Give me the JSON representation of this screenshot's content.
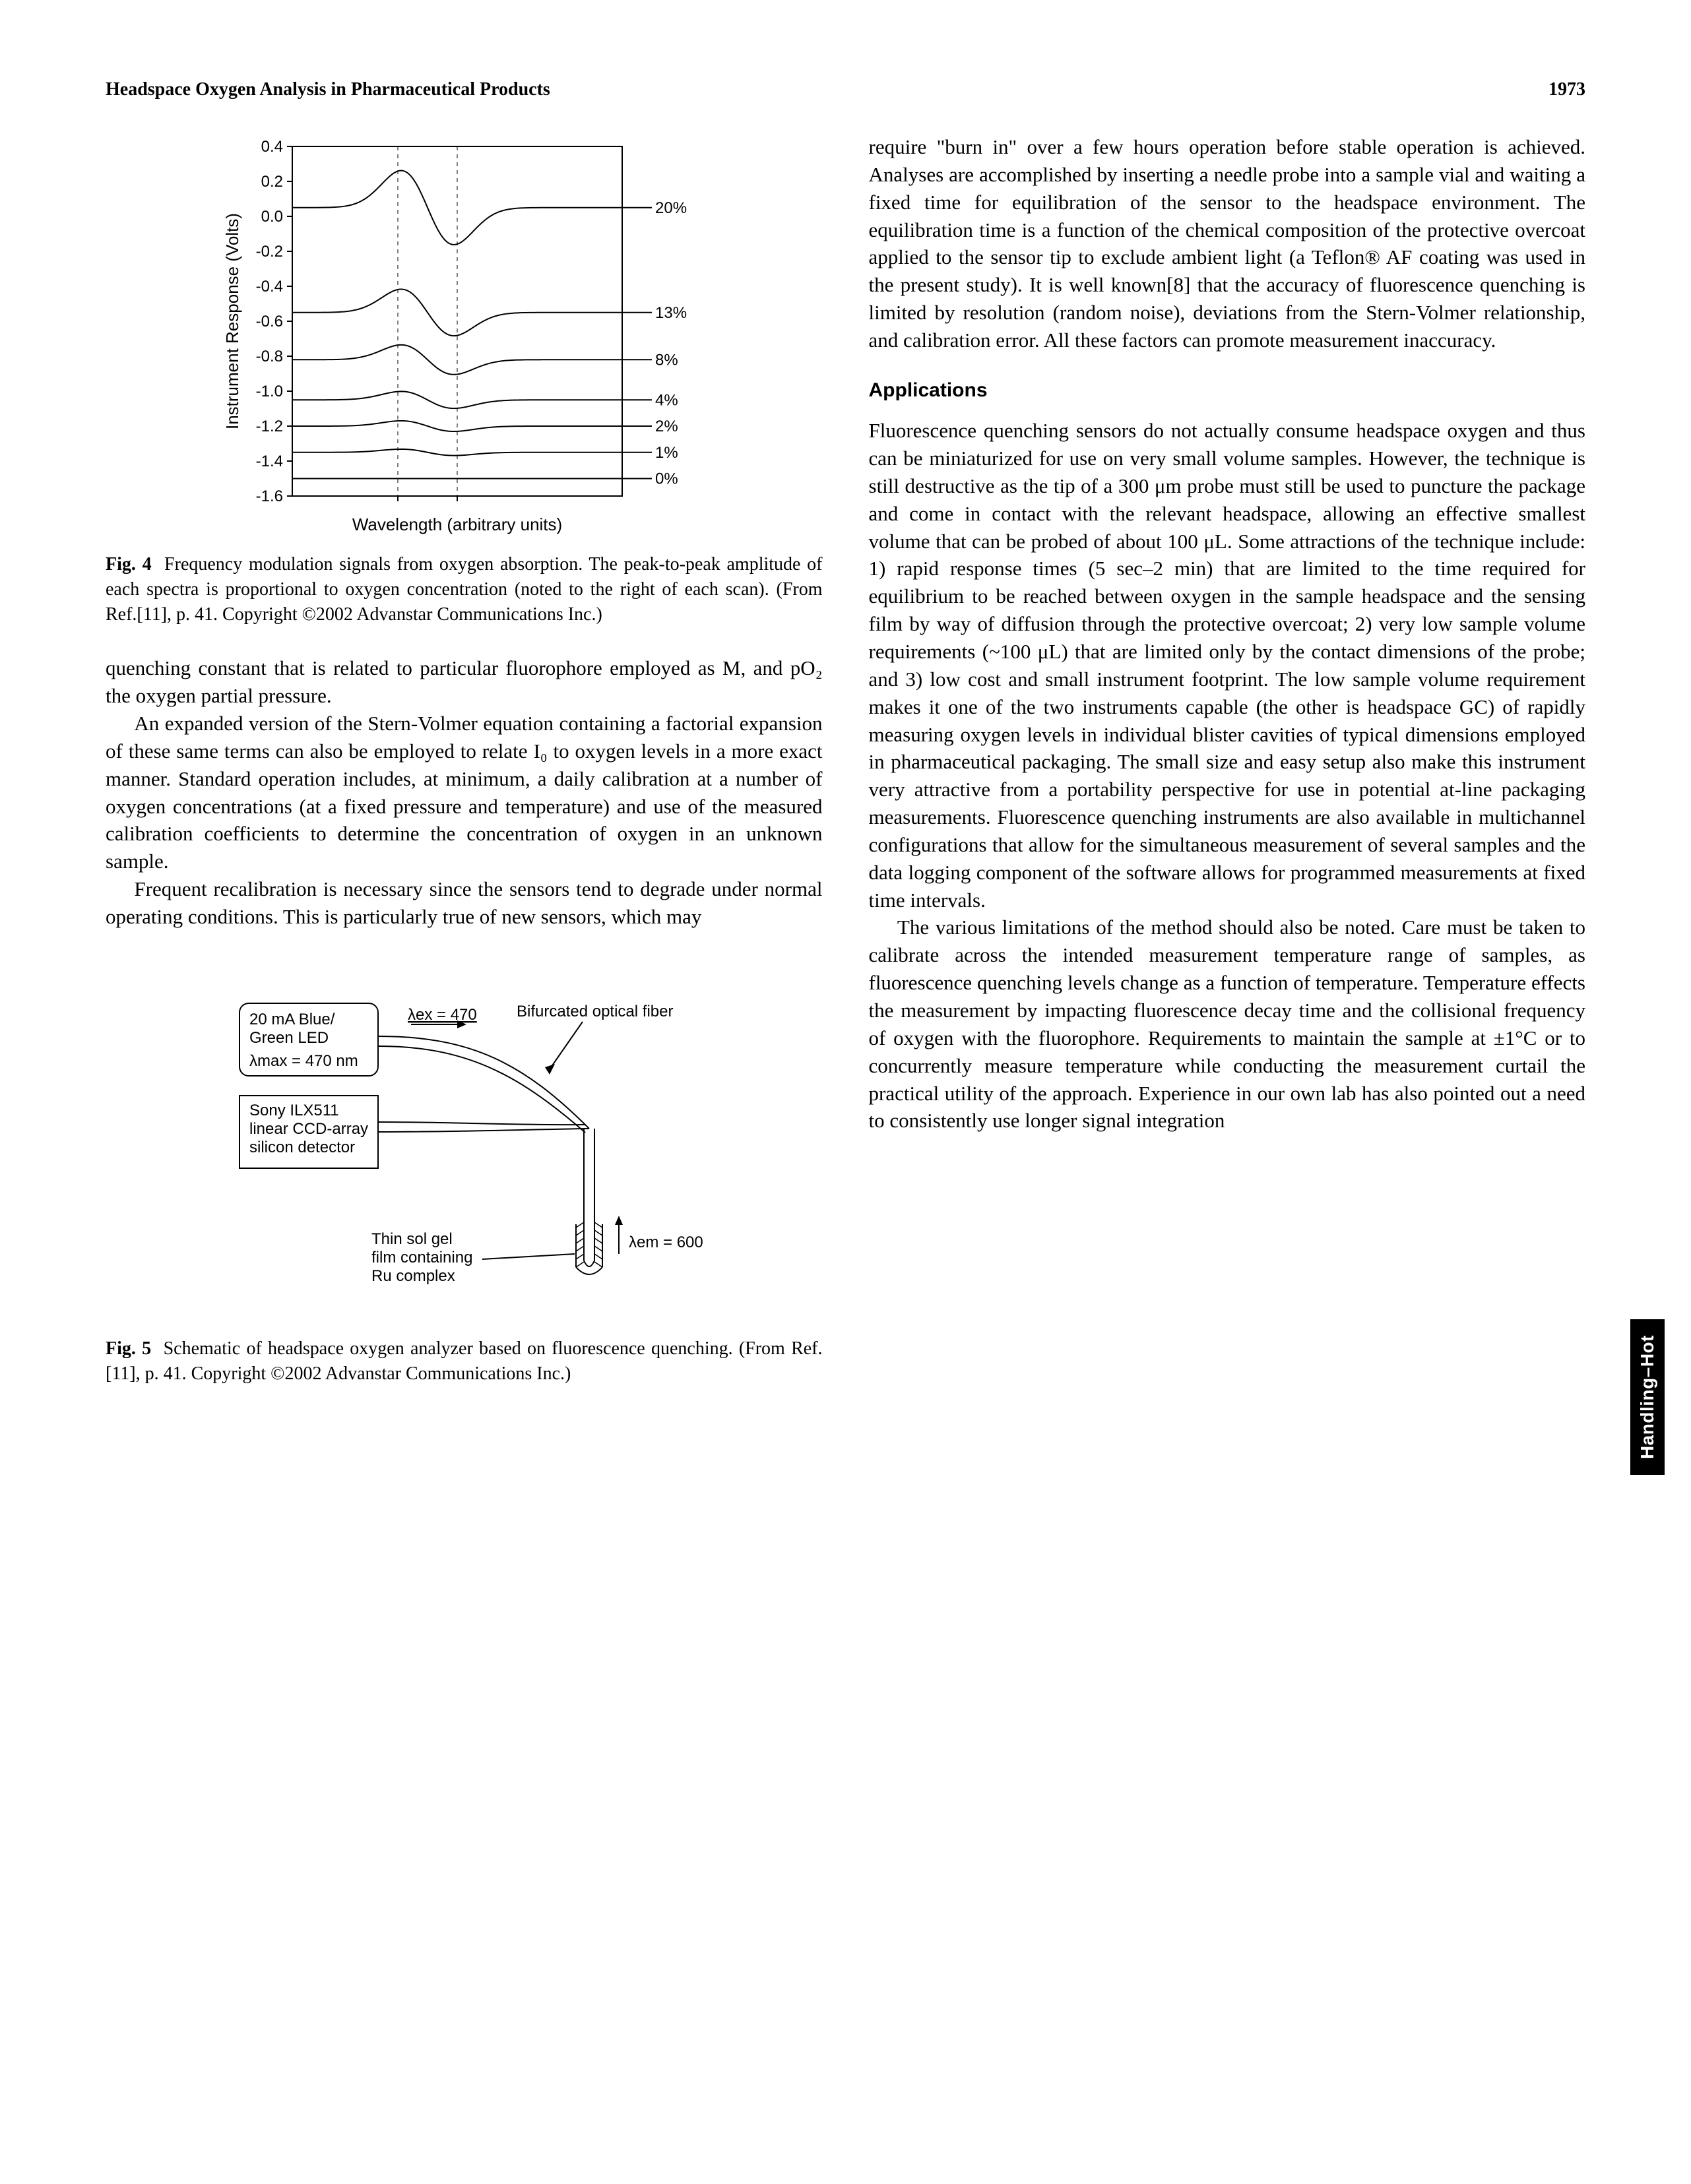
{
  "header": {
    "title": "Headspace Oxygen Analysis in Pharmaceutical Products",
    "page_number": "1973"
  },
  "side_tab": "Handling–Hot",
  "left_column": {
    "fig4": {
      "caption_label": "Fig. 4",
      "caption_text": "Frequency modulation signals from oxygen absorption. The peak-to-peak amplitude of each spectra is proportional to oxygen concentration (noted to the right of each scan). (From Ref.[11], p. 41. Copyright ©2002 Advanstar Communications Inc.)",
      "chart": {
        "type": "line",
        "xlabel": "Wavelength (arbitrary units)",
        "ylabel": "Instrument Response (Volts)",
        "ylim": [
          -1.6,
          0.4
        ],
        "yticks": [
          -1.6,
          -1.4,
          -1.2,
          -1.0,
          -0.8,
          -0.6,
          -0.4,
          -0.2,
          0.0,
          0.2,
          0.4
        ],
        "xlim": [
          0,
          10
        ],
        "series_labels": [
          "20%",
          "13%",
          "8%",
          "4%",
          "2%",
          "1%",
          "0%"
        ],
        "series_baselines": [
          0.05,
          -0.55,
          -0.82,
          -1.05,
          -1.2,
          -1.35,
          -1.5
        ],
        "series_amplitudes": [
          0.35,
          0.22,
          0.14,
          0.08,
          0.05,
          0.03,
          0.0
        ],
        "line_color": "#000000",
        "background_color": "#ffffff",
        "axis_color": "#000000",
        "label_fontsize": 26,
        "tick_fontsize": 24
      }
    },
    "para1": "quenching constant that is related to particular fluorophore employed as M, and pO₂ the oxygen partial pressure.",
    "para2": "An expanded version of the Stern-Volmer equation containing a factorial expansion of these same terms can also be employed to relate I₀ to oxygen levels in a more exact manner. Standard operation includes, at minimum, a daily calibration at a number of oxygen concentrations (at a fixed pressure and temperature) and use of the measured calibration coefficients to determine the concentration of oxygen in an unknown sample.",
    "para3": "Frequent recalibration is necessary since the sensors tend to degrade under normal operating conditions. This is particularly true of new sensors, which may",
    "fig5": {
      "caption_label": "Fig. 5",
      "caption_text": "Schematic of headspace oxygen analyzer based on fluorescence quenching. (From Ref.[11], p. 41. Copyright ©2002 Advanstar Communications Inc.)",
      "schematic": {
        "box1_line1": "20 mA Blue/",
        "box1_line2": "Green LED",
        "box1_line3": "λmax = 470 nm",
        "box2_line1": "Sony ILX511",
        "box2_line2": "linear CCD-array",
        "box2_line3": "silicon detector",
        "label_ex": "λex = 470",
        "label_fiber": "Bifurcated optical fiber",
        "label_em": "λem = 600 nm",
        "label_film1": "Thin sol gel",
        "label_film2": "film containing",
        "label_film3": "Ru complex",
        "line_color": "#000000",
        "background_color": "#ffffff",
        "fontsize": 24
      }
    }
  },
  "right_column": {
    "para1": "require \"burn in\" over a few hours operation before stable operation is achieved. Analyses are accomplished by inserting a needle probe into a sample vial and waiting a fixed time for equilibration of the sensor to the headspace environment. The equilibration time is a function of the chemical composition of the protective overcoat applied to the sensor tip to exclude ambient light (a Teflon® AF coating was used in the present study). It is well known[8] that the accuracy of fluorescence quenching is limited by resolution (random noise), deviations from the Stern-Volmer relationship, and calibration error. All these factors can promote measurement inaccuracy.",
    "heading1": "Applications",
    "para2": "Fluorescence quenching sensors do not actually consume headspace oxygen and thus can be miniaturized for use on very small volume samples. However, the technique is still destructive as the tip of a 300 μm probe must still be used to puncture the package and come in contact with the relevant headspace, allowing an effective smallest volume that can be probed of about 100 μL. Some attractions of the technique include: 1) rapid response times (5 sec–2 min) that are limited to the time required for equilibrium to be reached between oxygen in the sample headspace and the sensing film by way of diffusion through the protective overcoat; 2) very low sample volume requirements (~100 μL) that are limited only by the contact dimensions of the probe; and 3) low cost and small instrument footprint. The low sample volume requirement makes it one of the two instruments capable (the other is headspace GC) of rapidly measuring oxygen levels in individual blister cavities of typical dimensions employed in pharmaceutical packaging. The small size and easy setup also make this instrument very attractive from a portability perspective for use in potential at-line packaging measurements. Fluorescence quenching instruments are also available in multichannel configurations that allow for the simultaneous measurement of several samples and the data logging component of the software allows for programmed measurements at fixed time intervals.",
    "para3": "The various limitations of the method should also be noted. Care must be taken to calibrate across the intended measurement temperature range of samples, as fluorescence quenching levels change as a function of temperature. Temperature effects the measurement by impacting fluorescence decay time and the collisional frequency of oxygen with the fluorophore. Requirements to maintain the sample at ±1°C or to concurrently measure temperature while conducting the measurement curtail the practical utility of the approach. Experience in our own lab has also pointed out a need to consistently use longer signal integration"
  }
}
